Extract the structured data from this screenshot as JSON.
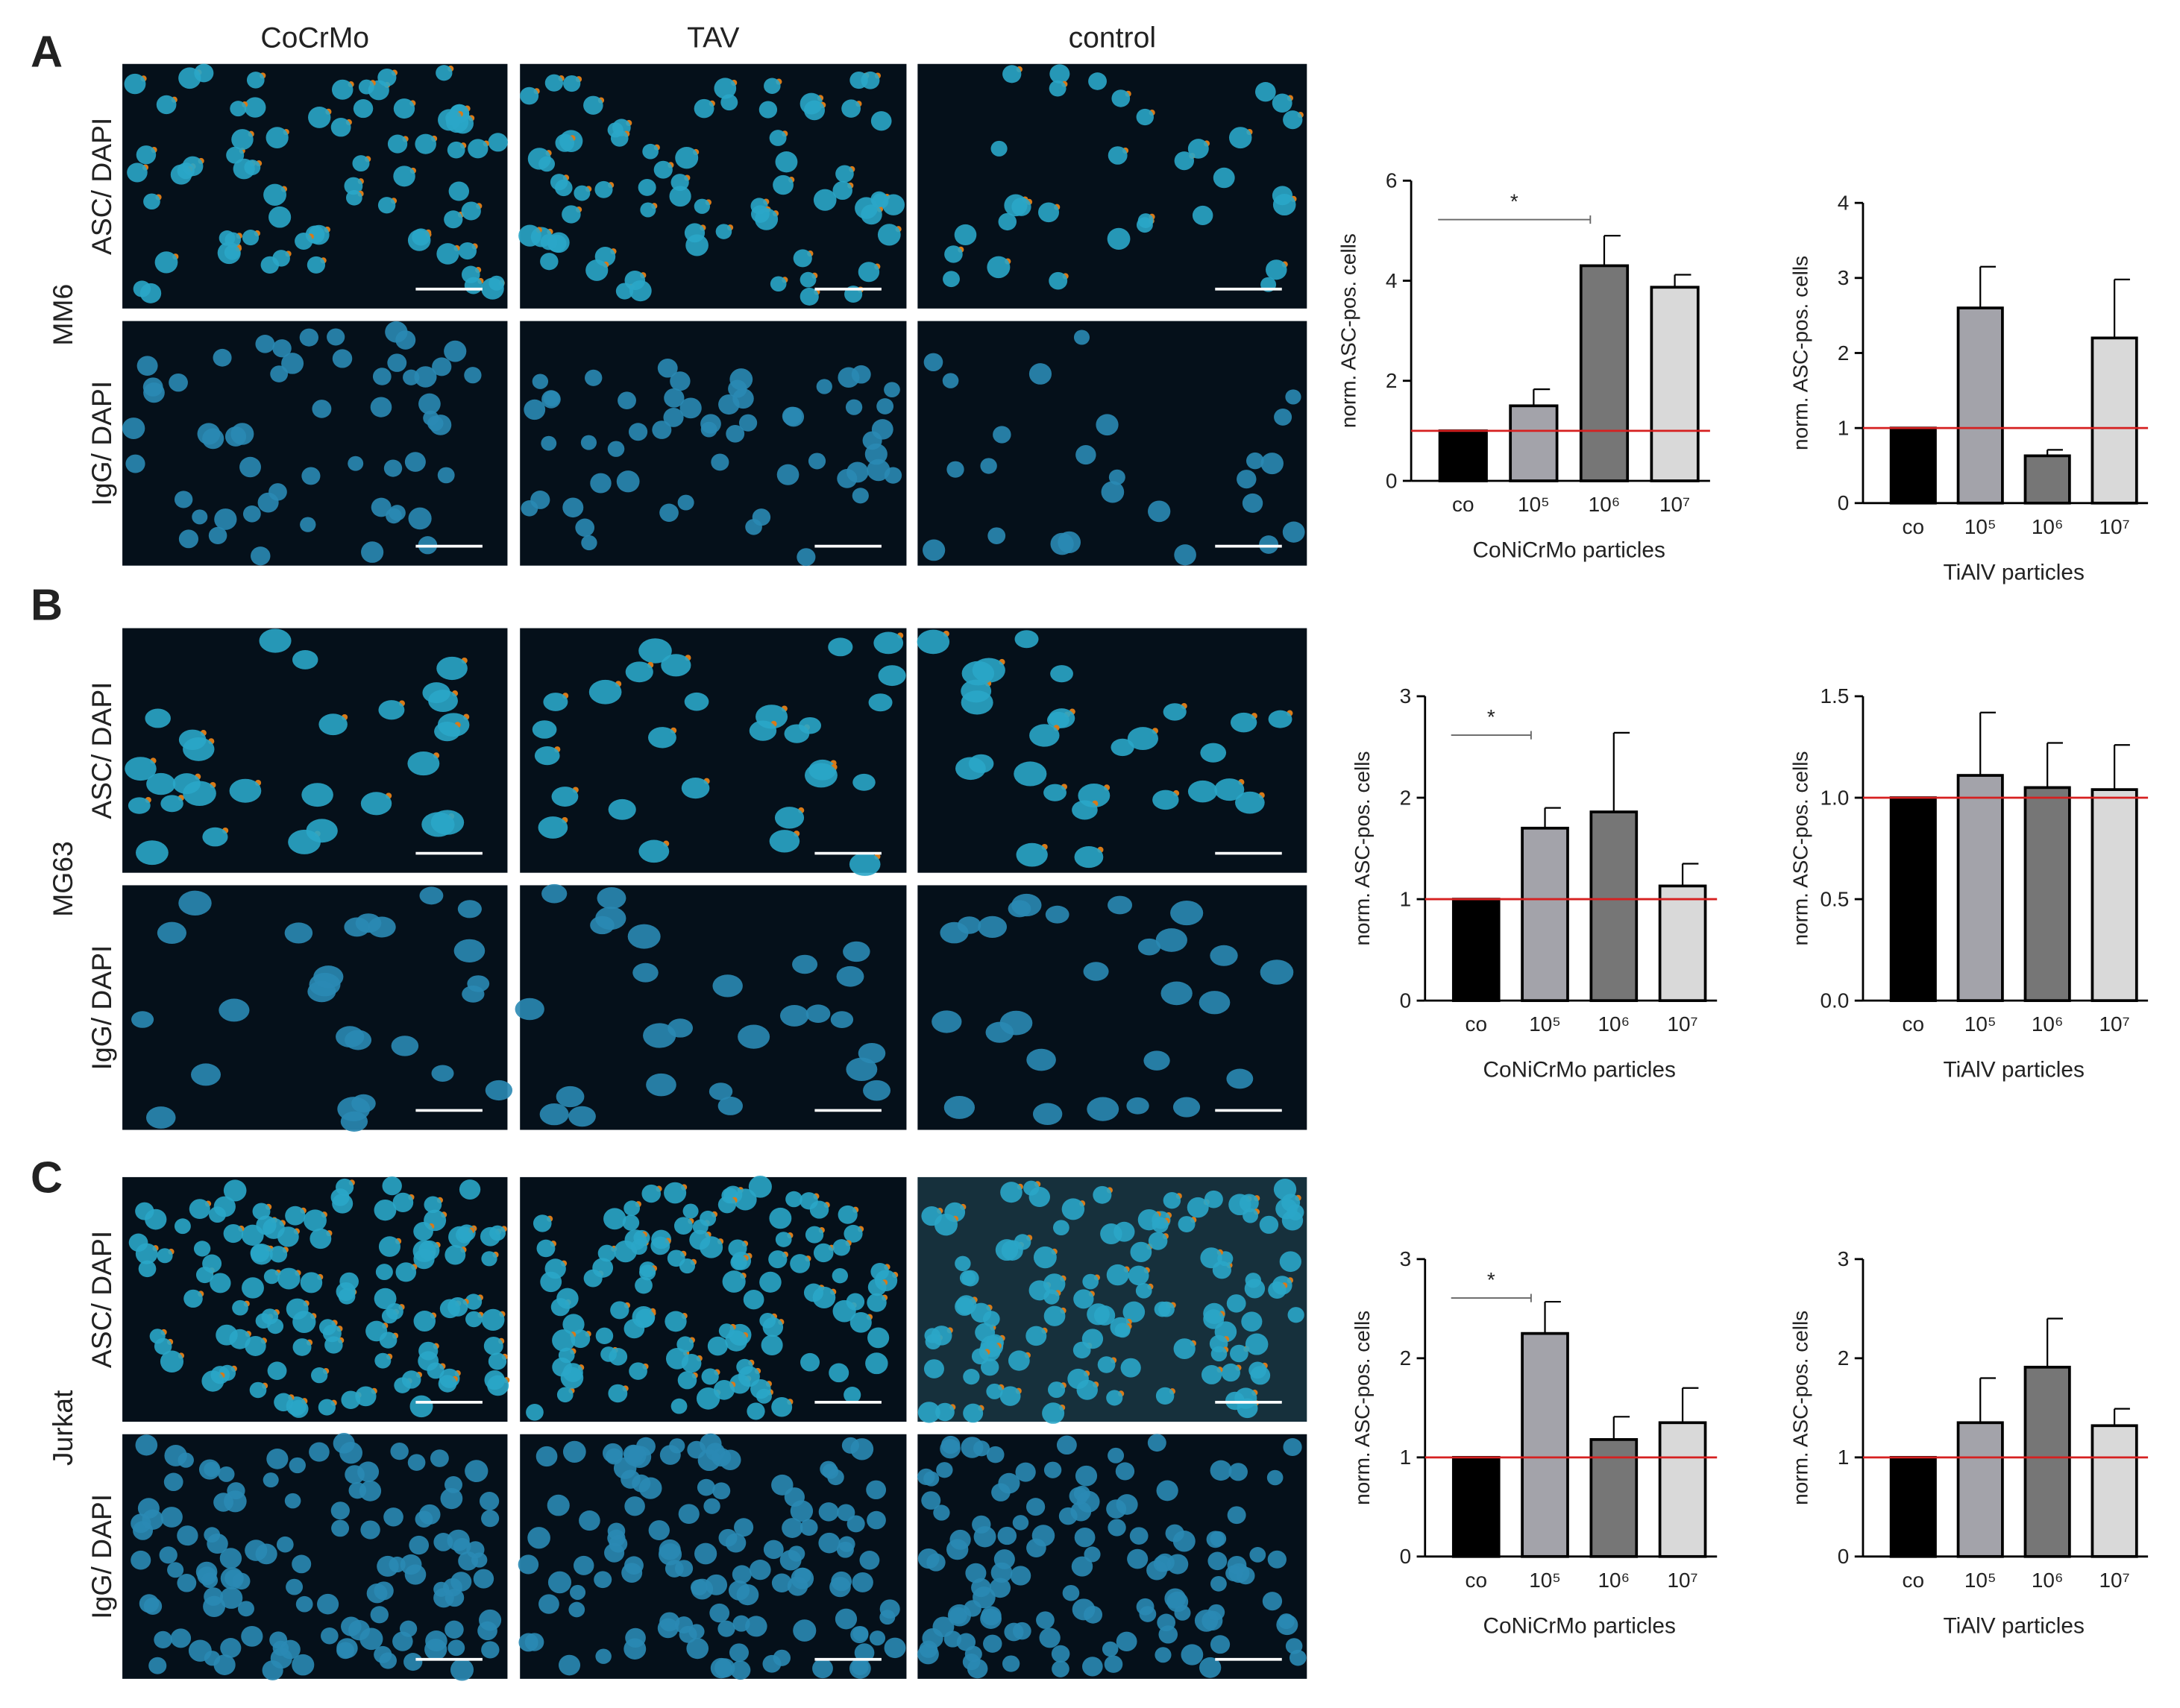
{
  "column_headers": [
    "CoCrMo",
    "TAV",
    "control"
  ],
  "panels": [
    {
      "letter": "A",
      "cell_line": "MM6",
      "stains": [
        "ASC/ DAPI",
        "IgG/ DAPI"
      ]
    },
    {
      "letter": "B",
      "cell_line": "MG63",
      "stains": [
        "ASC/ DAPI",
        "IgG/ DAPI"
      ]
    },
    {
      "letter": "C",
      "cell_line": "Jurkat",
      "stains": [
        "ASC/ DAPI",
        "IgG/ DAPI"
      ]
    }
  ],
  "chart_data": [
    {
      "type": "bar",
      "ylabel": "norm. ASC-pos. cells",
      "xlabel": "CoNiCrMo particles",
      "categories": [
        "co",
        "10⁵",
        "10⁶",
        "10⁷"
      ],
      "values": [
        1,
        1.5,
        4.3,
        3.87
      ],
      "errors": [
        0,
        0.33,
        0.6,
        0.25
      ],
      "colors": [
        "#000000",
        "#a3a3aa",
        "#767676",
        "#d9d9d9"
      ],
      "ylim": [
        0,
        6
      ],
      "yticks": [
        0,
        2,
        4,
        6
      ],
      "reference_line": 1,
      "reference_color": "#d62020",
      "significance": [
        {
          "label": "*",
          "from": 0,
          "to": 2
        }
      ]
    },
    {
      "type": "bar",
      "ylabel": "norm. ASC-pos. cells",
      "xlabel": "TiAlV particles",
      "categories": [
        "co",
        "10⁵",
        "10⁶",
        "10⁷"
      ],
      "values": [
        1,
        2.6,
        0.63,
        2.2
      ],
      "errors": [
        0,
        0.55,
        0.08,
        0.78
      ],
      "colors": [
        "#000000",
        "#a3a3aa",
        "#767676",
        "#d9d9d9"
      ],
      "ylim": [
        0,
        4
      ],
      "yticks": [
        0,
        1,
        2,
        3,
        4
      ],
      "reference_line": 1,
      "reference_color": "#d62020",
      "significance": []
    },
    {
      "type": "bar",
      "ylabel": "norm. ASC-pos. cells",
      "xlabel": "CoNiCrMo particles",
      "categories": [
        "co",
        "10⁵",
        "10⁶",
        "10⁷"
      ],
      "values": [
        1,
        1.7,
        1.86,
        1.13
      ],
      "errors": [
        0,
        0.2,
        0.78,
        0.22
      ],
      "colors": [
        "#000000",
        "#a3a3aa",
        "#767676",
        "#d9d9d9"
      ],
      "ylim": [
        0,
        3
      ],
      "yticks": [
        0,
        1,
        2,
        3
      ],
      "reference_line": 1,
      "reference_color": "#d62020",
      "significance": [
        {
          "label": "*",
          "from": 0,
          "to": 1
        }
      ]
    },
    {
      "type": "bar",
      "ylabel": "norm. ASC-pos. cells",
      "xlabel": "TiAlV particles",
      "categories": [
        "co",
        "10⁵",
        "10⁶",
        "10⁷"
      ],
      "values": [
        1,
        1.11,
        1.05,
        1.04
      ],
      "errors": [
        0,
        0.31,
        0.22,
        0.22
      ],
      "colors": [
        "#000000",
        "#a3a3aa",
        "#767676",
        "#d9d9d9"
      ],
      "ylim": [
        0,
        1.5
      ],
      "yticks": [
        {
          "value": 0,
          "label": "0.0"
        },
        0.5,
        {
          "value": 1,
          "label": "1.0"
        },
        1.5
      ],
      "reference_line": 1,
      "reference_color": "#d62020",
      "significance": []
    },
    {
      "type": "bar",
      "ylabel": "norm. ASC-pos. cells",
      "xlabel": "CoNiCrMo particles",
      "categories": [
        "co",
        "10⁵",
        "10⁶",
        "10⁷"
      ],
      "values": [
        1,
        2.25,
        1.18,
        1.35
      ],
      "errors": [
        0,
        0.32,
        0.23,
        0.35
      ],
      "colors": [
        "#000000",
        "#a3a3aa",
        "#767676",
        "#d9d9d9"
      ],
      "ylim": [
        0,
        3
      ],
      "yticks": [
        0,
        1,
        2,
        3
      ],
      "reference_line": 1,
      "reference_color": "#d62020",
      "significance": [
        {
          "label": "*",
          "from": 0,
          "to": 1
        }
      ]
    },
    {
      "type": "bar",
      "ylabel": "norm. ASC-pos. cells",
      "xlabel": "TiAlV particles",
      "categories": [
        "co",
        "10⁵",
        "10⁶",
        "10⁷"
      ],
      "values": [
        1,
        1.35,
        1.91,
        1.32
      ],
      "errors": [
        0,
        0.45,
        0.49,
        0.17
      ],
      "colors": [
        "#000000",
        "#a3a3aa",
        "#767676",
        "#d9d9d9"
      ],
      "ylim": [
        0,
        3
      ],
      "yticks": [
        0,
        1,
        2,
        3
      ],
      "reference_line": 1,
      "reference_color": "#d62020",
      "significance": []
    }
  ]
}
